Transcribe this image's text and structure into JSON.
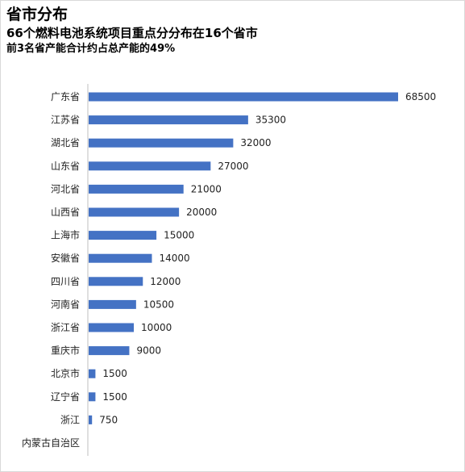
{
  "header": {
    "title": "省市分布",
    "subtitle1": "66个燃料电池系统项目重点分分布在16个省市",
    "subtitle2": "前3名省产能合计约占总产能的49%"
  },
  "colors": {
    "bar": "#4472c4",
    "axis": "#bfbfbf"
  },
  "chart_data": {
    "type": "bar",
    "orientation": "horizontal",
    "categories": [
      "广东省",
      "江苏省",
      "湖北省",
      "山东省",
      "河北省",
      "山西省",
      "上海市",
      "安徽省",
      "四川省",
      "河南省",
      "浙江省",
      "重庆市",
      "北京市",
      "辽宁省",
      "浙江",
      "内蒙古自治区"
    ],
    "values": [
      68500,
      35300,
      32000,
      27000,
      21000,
      20000,
      15000,
      14000,
      12000,
      10500,
      10000,
      9000,
      1500,
      1500,
      750,
      null
    ],
    "value_labels": [
      "68500",
      "35300",
      "32000",
      "27000",
      "21000",
      "20000",
      "15000",
      "14000",
      "12000",
      "10500",
      "10000",
      "9000",
      "1500",
      "1500",
      "750",
      ""
    ],
    "xlim": [
      0,
      68500
    ],
    "grid": false,
    "legend": "none"
  }
}
